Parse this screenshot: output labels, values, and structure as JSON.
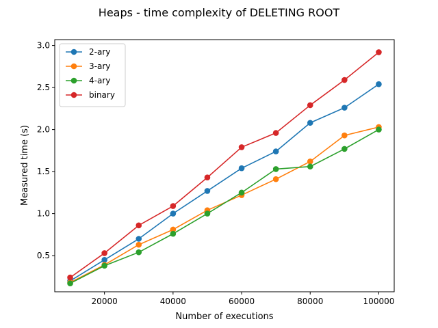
{
  "chart_data": {
    "type": "line",
    "title": "Heaps - time complexity of DELETING ROOT",
    "xlabel": "Number of executions",
    "ylabel": "Measured time (s)",
    "x": [
      10000,
      20000,
      30000,
      40000,
      50000,
      60000,
      70000,
      80000,
      90000,
      100000
    ],
    "xlim": [
      5500,
      104500
    ],
    "ylim": [
      0.07,
      3.07
    ],
    "xticks": [
      20000,
      40000,
      60000,
      80000,
      100000
    ],
    "xtick_labels": [
      "20000",
      "40000",
      "60000",
      "80000",
      "100000"
    ],
    "yticks": [
      0.5,
      1.0,
      1.5,
      2.0,
      2.5,
      3.0
    ],
    "ytick_labels": [
      "0.5",
      "1.0",
      "1.5",
      "2.0",
      "2.5",
      "3.0"
    ],
    "grid": false,
    "legend_position": "top-left",
    "series": [
      {
        "name": "2-ary",
        "color": "#1f77b4",
        "values": [
          0.2,
          0.45,
          0.7,
          1.0,
          1.27,
          1.54,
          1.74,
          2.08,
          2.26,
          2.54
        ]
      },
      {
        "name": "3-ary",
        "color": "#ff7f0e",
        "values": [
          0.18,
          0.39,
          0.63,
          0.81,
          1.04,
          1.22,
          1.41,
          1.62,
          1.93,
          2.03
        ]
      },
      {
        "name": "4-ary",
        "color": "#2ca02c",
        "values": [
          0.17,
          0.38,
          0.54,
          0.76,
          1.0,
          1.25,
          1.53,
          1.56,
          1.77,
          2.0
        ]
      },
      {
        "name": "binary",
        "color": "#d62728",
        "values": [
          0.24,
          0.53,
          0.86,
          1.09,
          1.43,
          1.79,
          1.96,
          2.29,
          2.59,
          2.92
        ]
      }
    ]
  }
}
